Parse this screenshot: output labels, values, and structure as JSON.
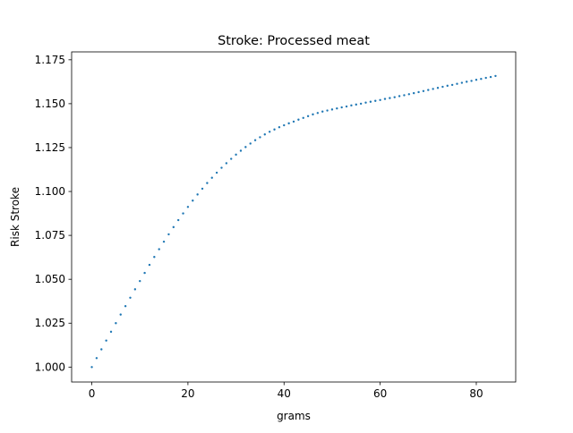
{
  "chart_data": {
    "type": "scatter",
    "title": "Stroke: Processed meat",
    "xlabel": "grams",
    "ylabel": "Risk Stroke",
    "xlim": [
      -4.2,
      88.2
    ],
    "ylim": [
      0.9915,
      1.1795
    ],
    "xticks": [
      0,
      20,
      40,
      60,
      80
    ],
    "xtick_labels": [
      "0",
      "20",
      "40",
      "60",
      "80"
    ],
    "yticks": [
      1.0,
      1.025,
      1.05,
      1.075,
      1.1,
      1.125,
      1.15,
      1.175
    ],
    "ytick_labels": [
      "1.000",
      "1.025",
      "1.050",
      "1.075",
      "1.100",
      "1.125",
      "1.150",
      "1.175"
    ],
    "grid": false,
    "legend": "none",
    "series": [
      {
        "color": "#1f77b4",
        "x": [
          0,
          1,
          2,
          3,
          4,
          5,
          6,
          7,
          8,
          9,
          10,
          11,
          12,
          13,
          14,
          15,
          16,
          17,
          18,
          19,
          20,
          21,
          22,
          23,
          24,
          25,
          26,
          27,
          28,
          29,
          30,
          31,
          32,
          33,
          34,
          35,
          36,
          37,
          38,
          39,
          40,
          41,
          42,
          43,
          44,
          45,
          46,
          47,
          48,
          49,
          50,
          51,
          52,
          53,
          54,
          55,
          56,
          57,
          58,
          59,
          60,
          61,
          62,
          63,
          64,
          65,
          66,
          67,
          68,
          69,
          70,
          71,
          72,
          73,
          74,
          75,
          76,
          77,
          78,
          79,
          80,
          81,
          82,
          83,
          84
        ],
        "y": [
          1.0,
          1.0051,
          1.0101,
          1.0151,
          1.0201,
          1.025,
          1.0299,
          1.0347,
          1.0395,
          1.0443,
          1.049,
          1.0536,
          1.0582,
          1.0627,
          1.0671,
          1.0714,
          1.0756,
          1.0797,
          1.0837,
          1.0875,
          1.0912,
          1.0948,
          1.0983,
          1.1016,
          1.1048,
          1.1078,
          1.1107,
          1.1135,
          1.1161,
          1.1186,
          1.121,
          1.1232,
          1.1253,
          1.1273,
          1.1292,
          1.1309,
          1.1325,
          1.134,
          1.1353,
          1.1366,
          1.1377,
          1.1388,
          1.1398,
          1.1409,
          1.1419,
          1.1429,
          1.1439,
          1.1447,
          1.1455,
          1.1461,
          1.1467,
          1.1473,
          1.1479,
          1.1484,
          1.149,
          1.1495,
          1.15,
          1.1506,
          1.1511,
          1.1516,
          1.1521,
          1.1527,
          1.1532,
          1.1537,
          1.1543,
          1.1548,
          1.1554,
          1.156,
          1.1566,
          1.1572,
          1.1578,
          1.1584,
          1.159,
          1.1596,
          1.1602,
          1.1607,
          1.1613,
          1.1619,
          1.1625,
          1.163,
          1.1636,
          1.1641,
          1.1647,
          1.1652,
          1.1658
        ]
      }
    ]
  }
}
